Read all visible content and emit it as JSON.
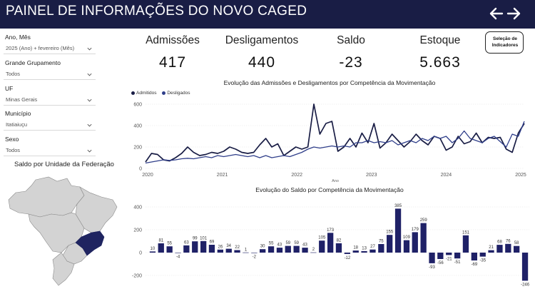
{
  "header": {
    "title": "PAINEL DE INFORMAÇÕES DO NOVO CAGED",
    "back_icon": "arrow-left-icon",
    "forward_icon": "arrow-right-icon"
  },
  "filters": [
    {
      "label": "Ano, Mês",
      "value": "2025 (Ano) + fevereiro (Mês)"
    },
    {
      "label": "Grande Grupamento",
      "value": "Todos"
    },
    {
      "label": "UF",
      "value": "Minas Gerais"
    },
    {
      "label": "Município",
      "value": "Itatiaiuçu"
    },
    {
      "label": "Sexo",
      "value": "Todos"
    }
  ],
  "map": {
    "title": "Saldo por Unidade da Federação",
    "highlight_color": "#1f2460",
    "base_color": "#d3d3d3"
  },
  "kpis": [
    {
      "label": "Admissões",
      "value": "417"
    },
    {
      "label": "Desligamentos",
      "value": "440"
    },
    {
      "label": "Saldo",
      "value": "-23"
    },
    {
      "label": "Estoque",
      "value": "5.663"
    }
  ],
  "indicator_button": {
    "label": "Seleção de\nIndicadores"
  },
  "colors": {
    "header_bg": "#191d45",
    "admitidos": "#191d45",
    "desligados": "#2f3e8a",
    "bar": "#1f2167"
  },
  "chart_data": [
    {
      "type": "line",
      "title": "Evolução das Admissões e Desligamentos por Competência da Movimentação",
      "xlabel": "Ano",
      "ylabel": "",
      "ylim": [
        0,
        600
      ],
      "yticks": [
        0,
        200,
        400,
        600
      ],
      "xticks": [
        "2020",
        "2021",
        "2022",
        "2023",
        "2024",
        "2025"
      ],
      "grid": true,
      "legend_position": "top-left",
      "series": [
        {
          "name": "Admitidos",
          "color": "#191d45",
          "values": [
            60,
            140,
            130,
            80,
            70,
            100,
            140,
            200,
            150,
            120,
            130,
            150,
            140,
            160,
            200,
            180,
            150,
            140,
            150,
            220,
            280,
            200,
            230,
            120,
            160,
            200,
            180,
            200,
            600,
            320,
            420,
            440,
            160,
            200,
            280,
            200,
            330,
            240,
            420,
            190,
            240,
            320,
            260,
            200,
            250,
            320,
            260,
            220,
            300,
            280,
            170,
            200,
            300,
            230,
            250,
            330,
            240,
            290,
            280,
            290,
            180,
            150,
            330,
            420
          ]
        },
        {
          "name": "Desligados",
          "color": "#2f3e8a",
          "values": [
            50,
            60,
            70,
            80,
            75,
            80,
            90,
            95,
            90,
            100,
            110,
            100,
            120,
            110,
            120,
            130,
            120,
            110,
            120,
            100,
            120,
            100,
            110,
            120,
            110,
            130,
            150,
            180,
            200,
            190,
            200,
            210,
            200,
            210,
            200,
            240,
            240,
            260,
            240,
            250,
            240,
            260,
            220,
            240,
            260,
            240,
            280,
            260,
            300,
            280,
            300,
            240,
            280,
            350,
            280,
            260,
            240,
            280,
            300,
            250,
            200,
            320,
            300,
            440
          ]
        }
      ]
    },
    {
      "type": "bar",
      "title": "Evolução do Saldo por Competência da Movimentação",
      "ylim": [
        -250,
        450
      ],
      "yticks": [
        -200,
        0,
        200,
        400
      ],
      "grid": true,
      "values": [
        10,
        81,
        55,
        -4,
        63,
        99,
        101,
        69,
        26,
        34,
        22,
        1,
        -2,
        30,
        55,
        43,
        59,
        59,
        43,
        2,
        105,
        173,
        82,
        -12,
        18,
        13,
        27,
        75,
        155,
        385,
        109,
        179,
        259,
        -93,
        -56,
        -21,
        -51,
        151,
        -69,
        -35,
        21,
        68,
        76,
        58,
        -246
      ]
    }
  ]
}
